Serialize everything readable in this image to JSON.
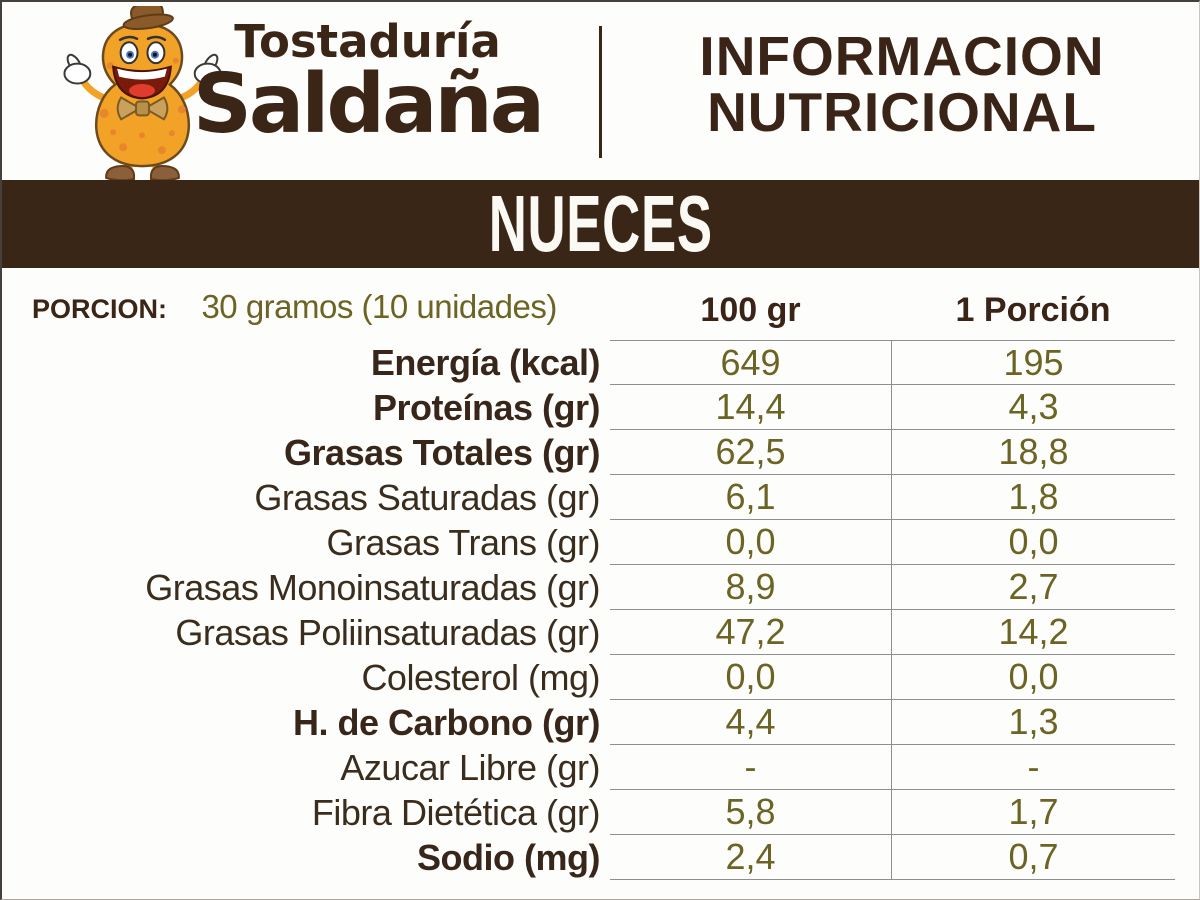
{
  "brand": {
    "line1": "Tostaduría",
    "line2": "Saldaña"
  },
  "header": {
    "title_line1": "INFORMACION",
    "title_line2": "NUTRICIONAL"
  },
  "product": "NUECES",
  "portion": {
    "label": "PORCION:",
    "value": "30 gramos (10 unidades)"
  },
  "table": {
    "columns": [
      "100 gr",
      "1 Porción"
    ],
    "rows": [
      {
        "label": "Energía (kcal)",
        "bold": true,
        "per100": "649",
        "portion": "195"
      },
      {
        "label": "Proteínas (gr)",
        "bold": true,
        "per100": "14,4",
        "portion": "4,3"
      },
      {
        "label": "Grasas Totales (gr)",
        "bold": true,
        "per100": "62,5",
        "portion": "18,8"
      },
      {
        "label": "Grasas Saturadas (gr)",
        "bold": false,
        "per100": "6,1",
        "portion": "1,8"
      },
      {
        "label": "Grasas Trans (gr)",
        "bold": false,
        "per100": "0,0",
        "portion": "0,0"
      },
      {
        "label": "Grasas Monoinsaturadas (gr)",
        "bold": false,
        "per100": "8,9",
        "portion": "2,7"
      },
      {
        "label": "Grasas Poliinsaturadas (gr)",
        "bold": false,
        "per100": "47,2",
        "portion": "14,2"
      },
      {
        "label": "Colesterol (mg)",
        "bold": false,
        "per100": "0,0",
        "portion": "0,0"
      },
      {
        "label": "H. de Carbono (gr)",
        "bold": true,
        "per100": "4,4",
        "portion": "1,3"
      },
      {
        "label": "Azucar Libre (gr)",
        "bold": false,
        "per100": "-",
        "portion": "-"
      },
      {
        "label": "Fibra Dietética (gr)",
        "bold": false,
        "per100": "5,8",
        "portion": "1,7"
      },
      {
        "label": "Sodio (mg)",
        "bold": true,
        "per100": "2,4",
        "portion": "0,7"
      }
    ]
  },
  "colors": {
    "brand_brown": "#3A2517",
    "band_brown": "#3A2617",
    "value_olive": "#6C6425",
    "grid_gray": "#8F8F8F",
    "mascot_orange": "#F2A227"
  },
  "icons": {
    "logo": "peanut-mascot"
  }
}
